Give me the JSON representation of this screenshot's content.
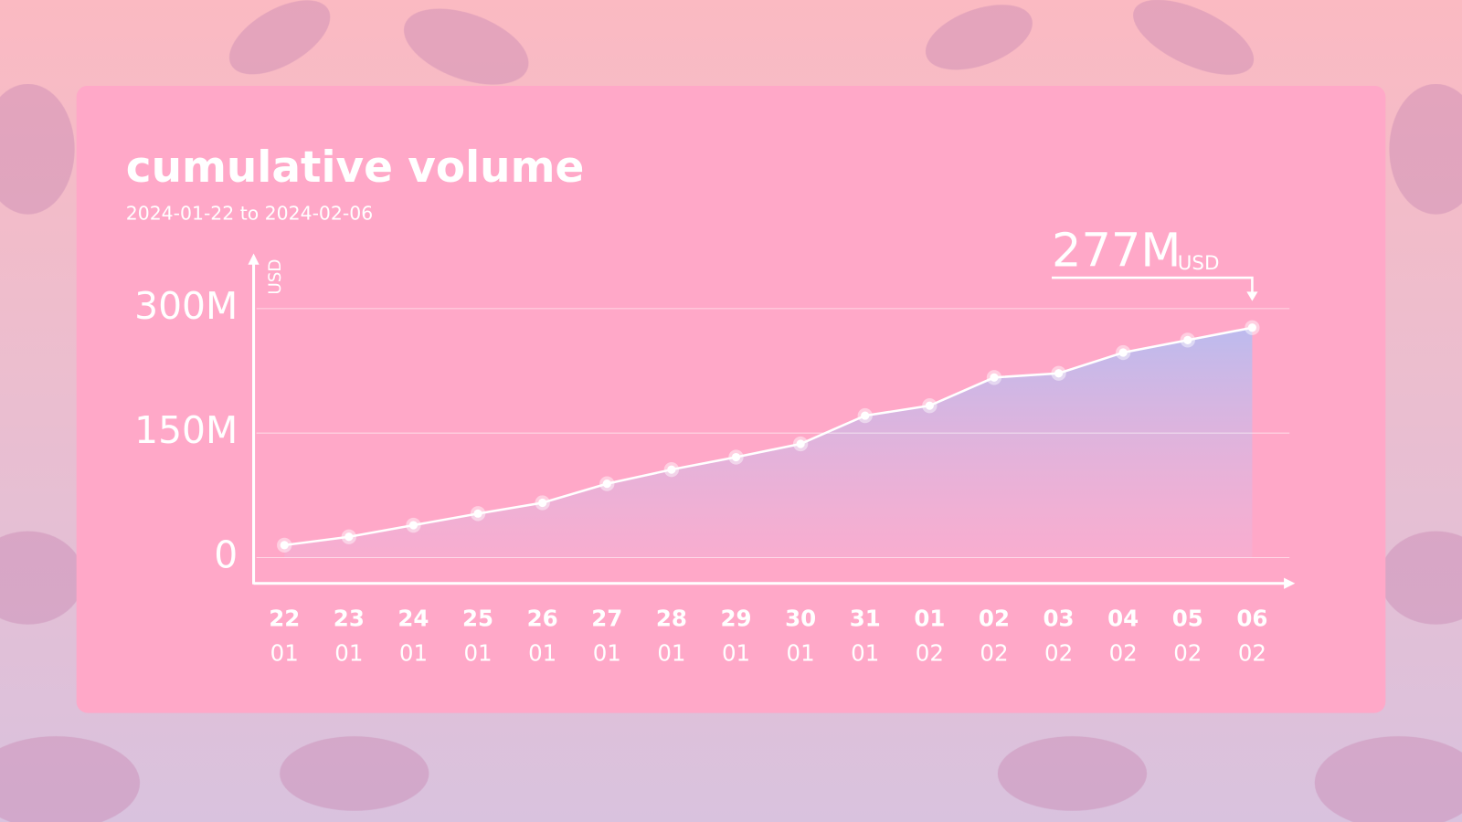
{
  "chart_data": {
    "type": "area",
    "title": "cumulative volume",
    "subtitle": "2024-01-22 to 2024-02-06",
    "y_label": "USD",
    "annotation": {
      "label": "277M",
      "unit": "USD"
    },
    "categories": [
      {
        "day": "22",
        "month": "01"
      },
      {
        "day": "23",
        "month": "01"
      },
      {
        "day": "24",
        "month": "01"
      },
      {
        "day": "25",
        "month": "01"
      },
      {
        "day": "26",
        "month": "01"
      },
      {
        "day": "27",
        "month": "01"
      },
      {
        "day": "28",
        "month": "01"
      },
      {
        "day": "29",
        "month": "01"
      },
      {
        "day": "30",
        "month": "01"
      },
      {
        "day": "31",
        "month": "01"
      },
      {
        "day": "01",
        "month": "02"
      },
      {
        "day": "02",
        "month": "02"
      },
      {
        "day": "03",
        "month": "02"
      },
      {
        "day": "04",
        "month": "02"
      },
      {
        "day": "05",
        "month": "02"
      },
      {
        "day": "06",
        "month": "02"
      }
    ],
    "values": [
      15000000,
      25000000,
      39000000,
      53000000,
      66000000,
      89000000,
      106000000,
      121000000,
      137000000,
      171000000,
      183000000,
      217000000,
      222000000,
      247000000,
      262000000,
      277000000
    ],
    "color": "#ffffff",
    "ylim": [
      -30000000,
      363000000
    ],
    "yticks": [
      0,
      {
        "value": 150000000,
        "label": "150M"
      },
      {
        "value": 300000000,
        "label": "300M"
      }
    ],
    "grid": true
  }
}
